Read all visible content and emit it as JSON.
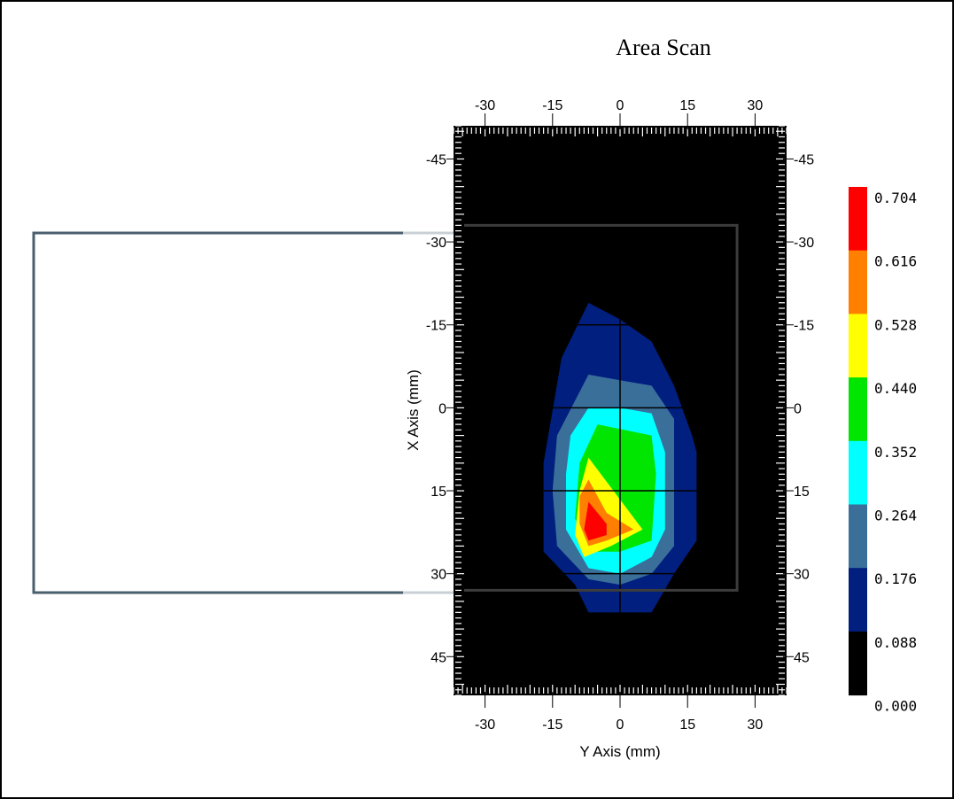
{
  "chart_data": {
    "type": "heatmap",
    "title": "Area Scan",
    "xlabel": "Y Axis (mm)",
    "ylabel": "X Axis (mm)",
    "xlim": [
      -37,
      37
    ],
    "ylim": [
      -51,
      52
    ],
    "y_inverted": true,
    "x_ticks": [
      "-30",
      "-15",
      "0",
      "15",
      "30"
    ],
    "x_tick_values": [
      -30,
      -15,
      0,
      15,
      30
    ],
    "y_ticks": [
      "-45",
      "-30",
      "-15",
      "0",
      "15",
      "30",
      "45"
    ],
    "y_tick_values": [
      -45,
      -30,
      -15,
      0,
      15,
      30,
      45
    ],
    "grid": true,
    "grid_values": {
      "x": [
        0
      ],
      "y": [
        -15,
        0,
        15,
        30
      ]
    },
    "background_color": "#000000",
    "colorbar": {
      "labels": [
        "0.704",
        "0.616",
        "0.528",
        "0.440",
        "0.352",
        "0.264",
        "0.176",
        "0.088",
        "0.000"
      ],
      "colors": [
        "#ff0000",
        "#ff7f00",
        "#ffff00",
        "#00e600",
        "#00ffff",
        "#3a6f9a",
        "#001f7f",
        "#000000"
      ]
    },
    "scan_area": {
      "x_range": [
        -36,
        26
      ],
      "y_range": [
        -33,
        33
      ]
    },
    "contours": [
      {
        "level": 0.088,
        "color": "#001f7f",
        "points": [
          [
            -7,
            -19
          ],
          [
            0,
            -16
          ],
          [
            7,
            -12
          ],
          [
            12,
            -4
          ],
          [
            16,
            5
          ],
          [
            17,
            8
          ],
          [
            17,
            24
          ],
          [
            12,
            30
          ],
          [
            7,
            37
          ],
          [
            -7,
            37
          ],
          [
            -10,
            32
          ],
          [
            -17,
            26
          ],
          [
            -17,
            24
          ],
          [
            -17,
            10
          ],
          [
            -13,
            -9
          ]
        ]
      },
      {
        "level": 0.176,
        "color": "#3a6f9a",
        "points": [
          [
            -7,
            -6
          ],
          [
            0,
            -5
          ],
          [
            7,
            -4
          ],
          [
            12,
            2
          ],
          [
            12,
            8
          ],
          [
            12,
            25
          ],
          [
            7,
            30
          ],
          [
            0,
            32
          ],
          [
            -7,
            31
          ],
          [
            -14,
            25
          ],
          [
            -15,
            15
          ],
          [
            -14,
            5
          ]
        ]
      },
      {
        "level": 0.264,
        "color": "#00ffff",
        "points": [
          [
            -7,
            0
          ],
          [
            0,
            0
          ],
          [
            7,
            1
          ],
          [
            10,
            8
          ],
          [
            10,
            22
          ],
          [
            7,
            27
          ],
          [
            0,
            30
          ],
          [
            -7,
            29
          ],
          [
            -12,
            22
          ],
          [
            -12,
            12
          ],
          [
            -11,
            5
          ]
        ]
      },
      {
        "level": 0.352,
        "color": "#00e600",
        "points": [
          [
            -5,
            3
          ],
          [
            7,
            5
          ],
          [
            8,
            12
          ],
          [
            7,
            24
          ],
          [
            0,
            26
          ],
          [
            -7,
            26
          ],
          [
            -10,
            20
          ],
          [
            -9,
            10
          ]
        ]
      },
      {
        "level": 0.44,
        "color": "#ffff00",
        "points": [
          [
            -7,
            9
          ],
          [
            5,
            22
          ],
          [
            -2,
            25
          ],
          [
            -8,
            27
          ],
          [
            -10,
            23
          ],
          [
            -9,
            15
          ]
        ]
      },
      {
        "level": 0.528,
        "color": "#ff7f00",
        "points": [
          [
            -7,
            13
          ],
          [
            -3,
            19
          ],
          [
            3,
            22
          ],
          [
            -3,
            24
          ],
          [
            -7,
            25
          ],
          [
            -9,
            21
          ],
          [
            -9,
            16
          ]
        ]
      },
      {
        "level": 0.616,
        "color": "#ff0000",
        "points": [
          [
            -7,
            17
          ],
          [
            -3,
            21
          ],
          [
            -3,
            23
          ],
          [
            -7,
            24
          ],
          [
            -8,
            22
          ]
        ]
      }
    ]
  }
}
